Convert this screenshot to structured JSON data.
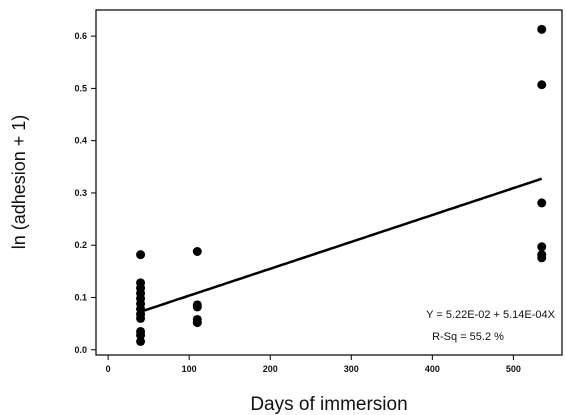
{
  "chart_data": {
    "type": "scatter",
    "title": "",
    "xlabel": "Days of immersion",
    "ylabel": "ln (adhesion + 1)",
    "xlim": [
      -15,
      560
    ],
    "ylim": [
      -0.01,
      0.65
    ],
    "x_ticks": [
      0,
      100,
      200,
      300,
      400,
      500
    ],
    "y_ticks": [
      0.0,
      0.1,
      0.2,
      0.3,
      0.4,
      0.5,
      0.6
    ],
    "x_tick_labels": [
      "0",
      "100",
      "200",
      "300",
      "400",
      "500"
    ],
    "y_tick_labels": [
      "0.0",
      "0.1",
      "0.2",
      "0.3",
      "0.4",
      "0.5",
      "0.6"
    ],
    "grid": false,
    "series": [
      {
        "points": [
          {
            "x": 40,
            "y": 0.182
          },
          {
            "x": 40,
            "y": 0.128
          },
          {
            "x": 40,
            "y": 0.118
          },
          {
            "x": 40,
            "y": 0.108
          },
          {
            "x": 40,
            "y": 0.098
          },
          {
            "x": 40,
            "y": 0.088
          },
          {
            "x": 40,
            "y": 0.078
          },
          {
            "x": 40,
            "y": 0.068
          },
          {
            "x": 40,
            "y": 0.06
          },
          {
            "x": 40,
            "y": 0.035
          },
          {
            "x": 40,
            "y": 0.028
          },
          {
            "x": 40,
            "y": 0.016
          },
          {
            "x": 110,
            "y": 0.188
          },
          {
            "x": 110,
            "y": 0.086
          },
          {
            "x": 110,
            "y": 0.082
          },
          {
            "x": 110,
            "y": 0.058
          },
          {
            "x": 110,
            "y": 0.052
          },
          {
            "x": 535,
            "y": 0.613
          },
          {
            "x": 535,
            "y": 0.507
          },
          {
            "x": 535,
            "y": 0.281
          },
          {
            "x": 535,
            "y": 0.197
          },
          {
            "x": 535,
            "y": 0.182
          },
          {
            "x": 535,
            "y": 0.176
          }
        ]
      }
    ],
    "fit_line": {
      "intercept": 0.0522,
      "slope": 0.000514,
      "x_range": [
        40,
        535
      ]
    },
    "annotations": {
      "equation": "Y = 5.22E-02 + 5.14E-04X",
      "r_squared": "R-Sq = 55.2 %"
    },
    "colors": {
      "points": "#000000",
      "line": "#000000",
      "axes": "#000000"
    }
  }
}
